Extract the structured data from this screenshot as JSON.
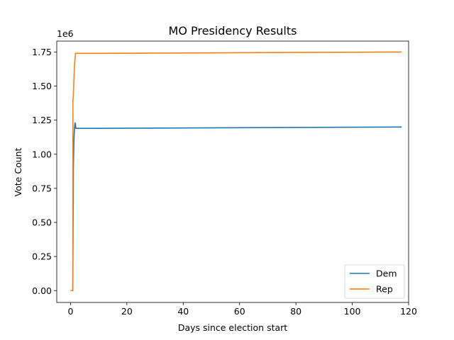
{
  "chart_data": {
    "type": "line",
    "title": "MO Presidency Results",
    "xlabel": "Days since election start",
    "ylabel": "Vote Count",
    "y_offset_label": "1e6",
    "xlim": [
      -4.9,
      120
    ],
    "ylim": [
      -0.087,
      1.83
    ],
    "x_ticks": [
      0,
      20,
      40,
      60,
      80,
      100,
      120
    ],
    "x_tick_labels": [
      "0",
      "20",
      "40",
      "60",
      "80",
      "100",
      "120"
    ],
    "y_ticks": [
      0.0,
      0.25,
      0.5,
      0.75,
      1.0,
      1.25,
      1.5,
      1.75
    ],
    "y_tick_labels": [
      "0.00",
      "0.25",
      "0.50",
      "0.75",
      "1.00",
      "1.25",
      "1.50",
      "1.75"
    ],
    "grid": false,
    "legend_position": "lower-right",
    "series": [
      {
        "name": "Dem",
        "color": "#1f77b4",
        "x": [
          0,
          0.5,
          0.8,
          1.0,
          1.2,
          1.4,
          1.6,
          1.75,
          1.85,
          2.0,
          10,
          117.5
        ],
        "y": [
          0,
          0,
          0,
          0.9,
          1.1,
          1.19,
          1.23,
          1.22,
          1.19,
          1.19,
          1.19,
          1.2
        ]
      },
      {
        "name": "Rep",
        "color": "#ff7f0e",
        "x": [
          0,
          0.5,
          0.8,
          0.85,
          1.0,
          1.2,
          1.4,
          1.6,
          1.75,
          2.0,
          10,
          117.5
        ],
        "y": [
          0,
          0,
          0,
          1.4,
          1.43,
          1.55,
          1.65,
          1.7,
          1.74,
          1.74,
          1.74,
          1.75
        ]
      }
    ]
  }
}
